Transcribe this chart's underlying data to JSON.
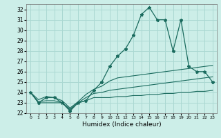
{
  "xlabel": "Humidex (Indice chaleur)",
  "background_color": "#cceee8",
  "grid_color": "#aad8d2",
  "line_color": "#1a6b5e",
  "x_values": [
    0,
    1,
    2,
    3,
    4,
    5,
    6,
    7,
    8,
    9,
    10,
    11,
    12,
    13,
    14,
    15,
    16,
    17,
    18,
    19,
    20,
    21,
    22,
    23
  ],
  "main_y": [
    24,
    23,
    23.5,
    23.5,
    23,
    22.2,
    23,
    23.2,
    24.2,
    25,
    26.5,
    27.5,
    28.2,
    29.5,
    31.5,
    32.2,
    31,
    31,
    28,
    31,
    26.5,
    26,
    26,
    25
  ],
  "line2_y": [
    24,
    23.3,
    23.6,
    23.5,
    23.2,
    22.5,
    23.1,
    23.8,
    24.3,
    24.6,
    25.1,
    25.4,
    25.5,
    25.6,
    25.7,
    25.8,
    25.9,
    26.0,
    26.1,
    26.2,
    26.3,
    26.4,
    26.5,
    26.6
  ],
  "line3_y": [
    24,
    23.1,
    23.2,
    23.2,
    23.0,
    22.4,
    23.0,
    23.5,
    23.9,
    24.0,
    24.2,
    24.3,
    24.4,
    24.5,
    24.6,
    24.7,
    24.8,
    24.9,
    25.0,
    25.1,
    25.2,
    25.3,
    25.4,
    25.5
  ],
  "line4_y": [
    24,
    23.0,
    23.0,
    23.0,
    23.0,
    22.3,
    23.0,
    23.2,
    23.5,
    23.5,
    23.5,
    23.6,
    23.6,
    23.7,
    23.7,
    23.8,
    23.8,
    23.9,
    23.9,
    24.0,
    24.0,
    24.1,
    24.1,
    24.2
  ],
  "ylim": [
    22,
    32.5
  ],
  "yticks": [
    22,
    23,
    24,
    25,
    26,
    27,
    28,
    29,
    30,
    31,
    32
  ],
  "xticks": [
    0,
    1,
    2,
    3,
    4,
    5,
    6,
    7,
    8,
    9,
    10,
    11,
    12,
    13,
    14,
    15,
    16,
    17,
    18,
    19,
    20,
    21,
    22,
    23
  ]
}
